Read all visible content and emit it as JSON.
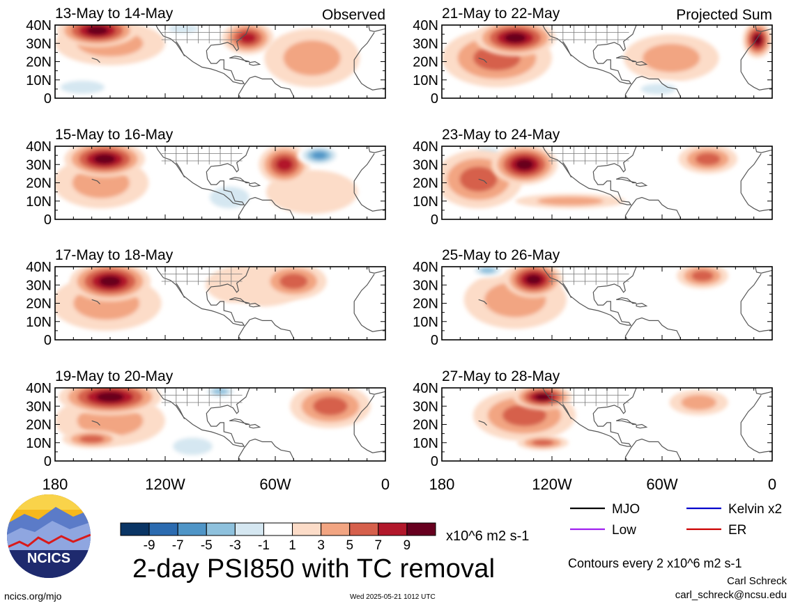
{
  "chart_data": {
    "type": "heatmap",
    "title": "2-day PSI850 with TC removal",
    "units_label": "x10^6 m2 s-1",
    "contour_note": "Contours every 2 x10^6 m2 s-1",
    "colorbar": {
      "tick_labels": [
        "-9",
        "-7",
        "-5",
        "-3",
        "-1",
        "1",
        "3",
        "5",
        "7",
        "9"
      ],
      "colors": [
        "#0a3565",
        "#2b6bb0",
        "#4f95c7",
        "#8ec1dd",
        "#d5e7f1",
        "#ffffff",
        "#fcdcc8",
        "#f2a582",
        "#d6604c",
        "#b2182b",
        "#67001f"
      ]
    },
    "legend": [
      {
        "label": "MJO",
        "color": "#000000"
      },
      {
        "label": "Kelvin x2",
        "color": "#0000cc"
      },
      {
        "label": "Low",
        "color": "#a020f0"
      },
      {
        "label": "ER",
        "color": "#cc0000"
      }
    ],
    "x_tick_labels": [
      "180",
      "120W",
      "60W",
      "0"
    ],
    "y_tick_labels": [
      "40N",
      "30N",
      "20N",
      "10N",
      "0"
    ],
    "xlim": [
      -180,
      0
    ],
    "ylim": [
      0,
      40
    ],
    "panels": [
      {
        "date_range": "13-May to 14-May",
        "label": "Observed",
        "blobs": [
          {
            "lon": -157,
            "lat": 37,
            "rx": 22,
            "ry": 9,
            "level": 9
          },
          {
            "lon": -75,
            "lat": 33,
            "rx": 14,
            "ry": 9,
            "level": 7
          },
          {
            "lon": -40,
            "lat": 22,
            "rx": 26,
            "ry": 16,
            "level": 3
          },
          {
            "lon": -150,
            "lat": 30,
            "rx": 30,
            "ry": 12,
            "level": 3
          },
          {
            "lon": -165,
            "lat": 6,
            "rx": 20,
            "ry": 6,
            "level": -3
          },
          {
            "lon": -110,
            "lat": 38,
            "rx": 14,
            "ry": 4,
            "level": -3
          }
        ]
      },
      {
        "date_range": "21-May to 22-May",
        "label": "Projected Sum",
        "blobs": [
          {
            "lon": -140,
            "lat": 33,
            "rx": 22,
            "ry": 10,
            "level": 9
          },
          {
            "lon": -150,
            "lat": 22,
            "rx": 30,
            "ry": 16,
            "level": 5
          },
          {
            "lon": -8,
            "lat": 32,
            "rx": 8,
            "ry": 10,
            "level": 9
          },
          {
            "lon": -55,
            "lat": 22,
            "rx": 26,
            "ry": 13,
            "level": 3
          },
          {
            "lon": -62,
            "lat": 5,
            "rx": 16,
            "ry": 5,
            "level": -3
          }
        ]
      },
      {
        "date_range": "15-May to 16-May",
        "label": "",
        "blobs": [
          {
            "lon": -153,
            "lat": 33,
            "rx": 22,
            "ry": 10,
            "level": 9
          },
          {
            "lon": -155,
            "lat": 20,
            "rx": 26,
            "ry": 14,
            "level": 3
          },
          {
            "lon": -55,
            "lat": 30,
            "rx": 14,
            "ry": 11,
            "level": 7
          },
          {
            "lon": -36,
            "lat": 35,
            "rx": 12,
            "ry": 6,
            "level": -7
          },
          {
            "lon": -85,
            "lat": 12,
            "rx": 18,
            "ry": 10,
            "level": -3
          },
          {
            "lon": -40,
            "lat": 15,
            "rx": 25,
            "ry": 12,
            "level": 1
          }
        ]
      },
      {
        "date_range": "23-May to 24-May",
        "label": "",
        "blobs": [
          {
            "lon": -135,
            "lat": 30,
            "rx": 18,
            "ry": 11,
            "level": 9
          },
          {
            "lon": -160,
            "lat": 22,
            "rx": 24,
            "ry": 16,
            "level": 5
          },
          {
            "lon": -155,
            "lat": 37,
            "rx": 10,
            "ry": 4,
            "level": -3
          },
          {
            "lon": -35,
            "lat": 33,
            "rx": 16,
            "ry": 8,
            "level": 5
          },
          {
            "lon": -35,
            "lat": 18,
            "rx": 18,
            "ry": 6,
            "level": -1
          },
          {
            "lon": -110,
            "lat": 10,
            "rx": 30,
            "ry": 4,
            "level": 3
          }
        ]
      },
      {
        "date_range": "17-May to 18-May",
        "label": "",
        "blobs": [
          {
            "lon": -150,
            "lat": 32,
            "rx": 22,
            "ry": 11,
            "level": 9
          },
          {
            "lon": -152,
            "lat": 20,
            "rx": 30,
            "ry": 15,
            "level": 3
          },
          {
            "lon": -50,
            "lat": 32,
            "rx": 18,
            "ry": 10,
            "level": 5
          },
          {
            "lon": -70,
            "lat": 30,
            "rx": 28,
            "ry": 12,
            "level": 1
          },
          {
            "lon": -80,
            "lat": 12,
            "rx": 16,
            "ry": 8,
            "level": -1
          }
        ]
      },
      {
        "date_range": "25-May to 26-May",
        "label": "",
        "blobs": [
          {
            "lon": -130,
            "lat": 33,
            "rx": 16,
            "ry": 10,
            "level": 9
          },
          {
            "lon": -140,
            "lat": 22,
            "rx": 28,
            "ry": 16,
            "level": 3
          },
          {
            "lon": -155,
            "lat": 38,
            "rx": 10,
            "ry": 4,
            "level": -5
          },
          {
            "lon": -38,
            "lat": 35,
            "rx": 14,
            "ry": 7,
            "level": 5
          },
          {
            "lon": -15,
            "lat": 25,
            "rx": 12,
            "ry": 14,
            "level": -1
          }
        ]
      },
      {
        "date_range": "19-May to 20-May",
        "label": "",
        "blobs": [
          {
            "lon": -150,
            "lat": 35,
            "rx": 28,
            "ry": 10,
            "level": 9
          },
          {
            "lon": -160,
            "lat": 12,
            "rx": 16,
            "ry": 5,
            "level": 5
          },
          {
            "lon": -90,
            "lat": 38,
            "rx": 10,
            "ry": 4,
            "level": -5
          },
          {
            "lon": -30,
            "lat": 30,
            "rx": 22,
            "ry": 12,
            "level": 5
          },
          {
            "lon": -105,
            "lat": 8,
            "rx": 18,
            "ry": 8,
            "level": -3
          },
          {
            "lon": -150,
            "lat": 22,
            "rx": 30,
            "ry": 14,
            "level": 3
          }
        ]
      },
      {
        "date_range": "27-May to 28-May",
        "label": "",
        "blobs": [
          {
            "lon": -125,
            "lat": 35,
            "rx": 16,
            "ry": 7,
            "level": 9
          },
          {
            "lon": -135,
            "lat": 25,
            "rx": 28,
            "ry": 14,
            "level": 5
          },
          {
            "lon": -125,
            "lat": 10,
            "rx": 14,
            "ry": 4,
            "level": 5
          },
          {
            "lon": -40,
            "lat": 32,
            "rx": 16,
            "ry": 7,
            "level": 3
          },
          {
            "lon": -165,
            "lat": 35,
            "rx": 10,
            "ry": 5,
            "level": -1
          }
        ]
      }
    ]
  },
  "footer": {
    "logo_text": "NCICS",
    "website": "ncics.org/mjo",
    "timestamp": "Wed 2025-05-21 1012 UTC",
    "author": "Carl Schreck",
    "email": "carl_schreck@ncsu.edu"
  }
}
